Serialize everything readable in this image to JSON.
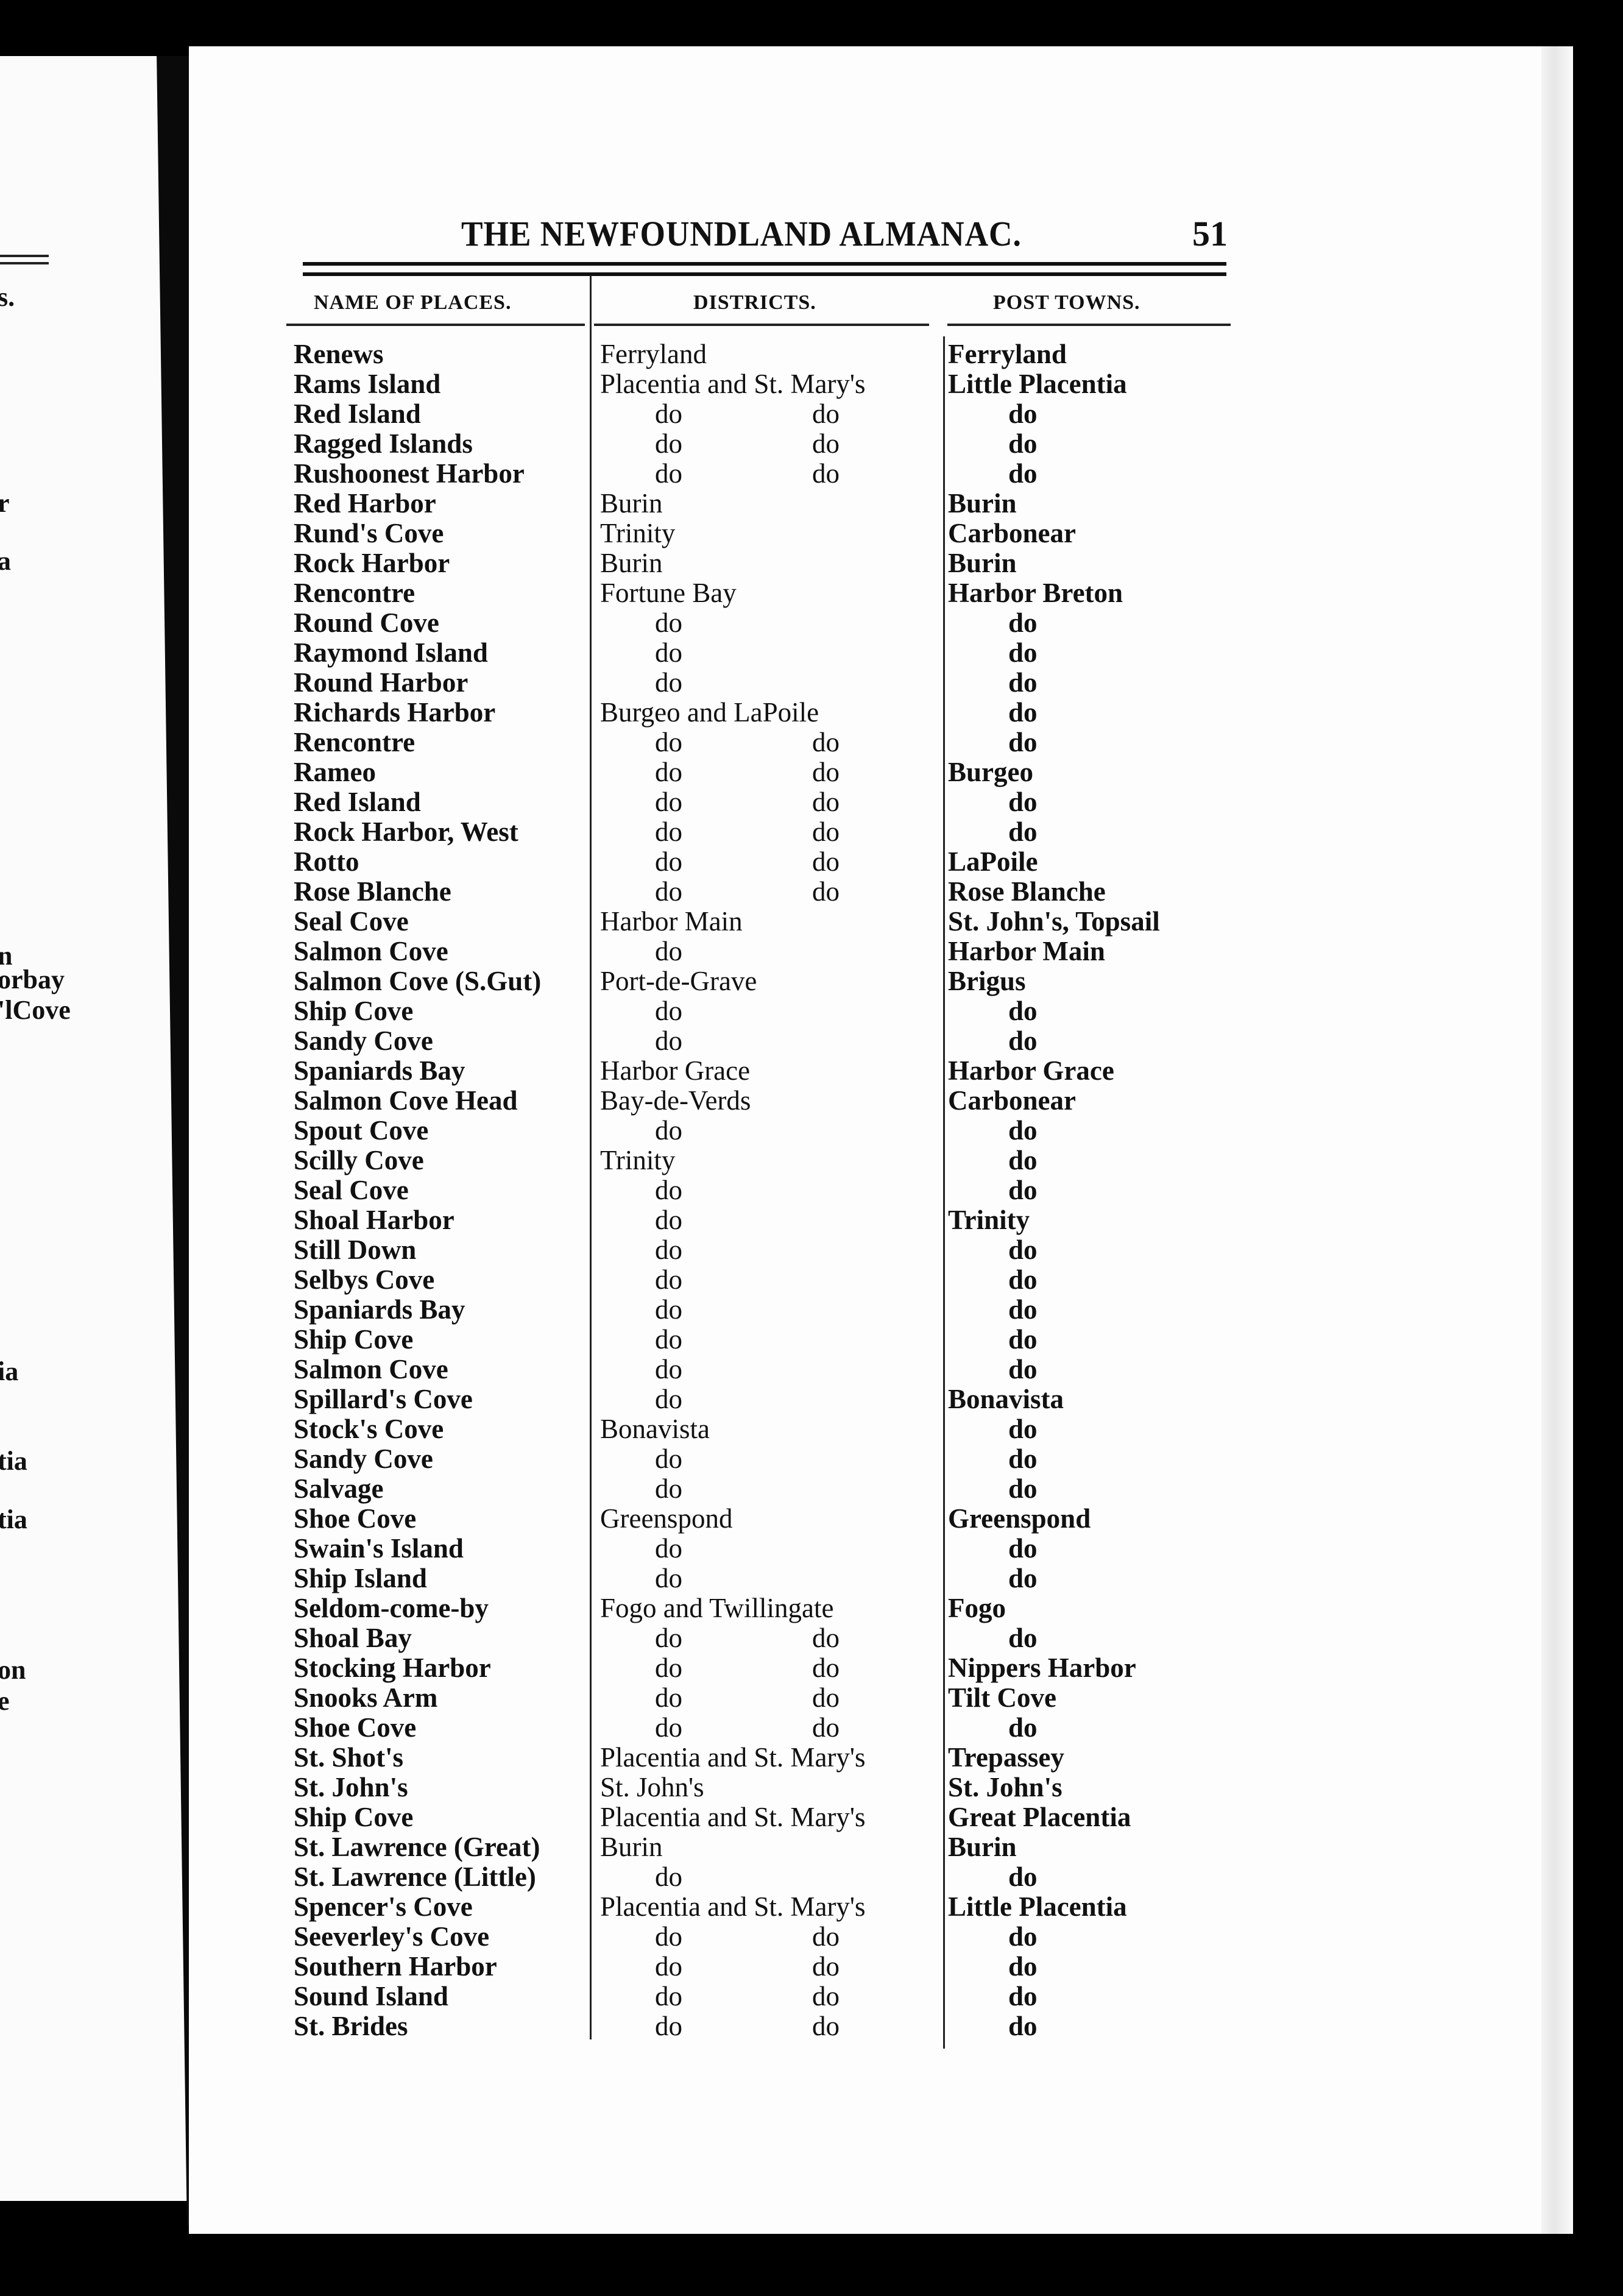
{
  "header": {
    "title": "THE NEWFOUNDLAND ALMANAC.",
    "page_number": "51"
  },
  "columns": {
    "name": "NAME OF PLACES.",
    "district": "DISTRICTS.",
    "post_town": "POST TOWNS."
  },
  "left_page_fragments": [
    "s.",
    "r",
    "a",
    "n",
    "orbay",
    "'lCove",
    "ia",
    "tia",
    "tia",
    "on",
    "e"
  ],
  "rows": [
    {
      "name": "Renews",
      "district": "Ferryland",
      "district2": "",
      "post_town": "Ferryland"
    },
    {
      "name": "Rams Island",
      "district": "Placentia and St. Mary's",
      "district2": "",
      "post_town": "Little Placentia"
    },
    {
      "name": "Red Island",
      "district": "do",
      "district2": "do",
      "post_town": "do"
    },
    {
      "name": "Ragged Islands",
      "district": "do",
      "district2": "do",
      "post_town": "do"
    },
    {
      "name": "Rushoonest Harbor",
      "district": "do",
      "district2": "do",
      "post_town": "do"
    },
    {
      "name": "Red Harbor",
      "district": "Burin",
      "district2": "",
      "post_town": "Burin"
    },
    {
      "name": "Rund's Cove",
      "district": "Trinity",
      "district2": "",
      "post_town": "Carbonear"
    },
    {
      "name": "Rock Harbor",
      "district": "Burin",
      "district2": "",
      "post_town": "Burin"
    },
    {
      "name": "Rencontre",
      "district": "Fortune Bay",
      "district2": "",
      "post_town": "Harbor Breton"
    },
    {
      "name": "Round Cove",
      "district": "do",
      "district2": "",
      "post_town": "do"
    },
    {
      "name": "Raymond Island",
      "district": "do",
      "district2": "",
      "post_town": "do"
    },
    {
      "name": "Round Harbor",
      "district": "do",
      "district2": "",
      "post_town": "do"
    },
    {
      "name": "Richards Harbor",
      "district": "Burgeo and LaPoile",
      "district2": "",
      "post_town": "do"
    },
    {
      "name": "Rencontre",
      "district": "do",
      "district2": "do",
      "post_town": "do"
    },
    {
      "name": "Rameo",
      "district": "do",
      "district2": "do",
      "post_town": "Burgeo"
    },
    {
      "name": "Red Island",
      "district": "do",
      "district2": "do",
      "post_town": "do"
    },
    {
      "name": "Rock Harbor, West",
      "district": "do",
      "district2": "do",
      "post_town": "do"
    },
    {
      "name": "Rotto",
      "district": "do",
      "district2": "do",
      "post_town": "LaPoile"
    },
    {
      "name": "Rose Blanche",
      "district": "do",
      "district2": "do",
      "post_town": "Rose Blanche"
    },
    {
      "name": "Seal Cove",
      "district": "Harbor Main",
      "district2": "",
      "post_town": "St. John's, Topsail"
    },
    {
      "name": "Salmon Cove",
      "district": "do",
      "district2": "",
      "post_town": "Harbor Main"
    },
    {
      "name": "Salmon Cove (S.Gut)",
      "district": "Port-de-Grave",
      "district2": "",
      "post_town": "Brigus"
    },
    {
      "name": "Ship Cove",
      "district": "do",
      "district2": "",
      "post_town": "do"
    },
    {
      "name": "Sandy Cove",
      "district": "do",
      "district2": "",
      "post_town": "do"
    },
    {
      "name": "Spaniards Bay",
      "district": "Harbor Grace",
      "district2": "",
      "post_town": "Harbor Grace"
    },
    {
      "name": "Salmon Cove Head",
      "district": "Bay-de-Verds",
      "district2": "",
      "post_town": "Carbonear"
    },
    {
      "name": "Spout Cove",
      "district": "do",
      "district2": "",
      "post_town": "do"
    },
    {
      "name": "Scilly Cove",
      "district": "Trinity",
      "district2": "",
      "post_town": "do"
    },
    {
      "name": "Seal Cove",
      "district": "do",
      "district2": "",
      "post_town": "do"
    },
    {
      "name": "Shoal Harbor",
      "district": "do",
      "district2": "",
      "post_town": "Trinity"
    },
    {
      "name": "Still Down",
      "district": "do",
      "district2": "",
      "post_town": "do"
    },
    {
      "name": "Selbys Cove",
      "district": "do",
      "district2": "",
      "post_town": "do"
    },
    {
      "name": "Spaniards Bay",
      "district": "do",
      "district2": "",
      "post_town": "do"
    },
    {
      "name": "Ship Cove",
      "district": "do",
      "district2": "",
      "post_town": "do"
    },
    {
      "name": "Salmon Cove",
      "district": "do",
      "district2": "",
      "post_town": "do"
    },
    {
      "name": "Spillard's Cove",
      "district": "do",
      "district2": "",
      "post_town": "Bonavista"
    },
    {
      "name": "Stock's Cove",
      "district": "Bonavista",
      "district2": "",
      "post_town": "do"
    },
    {
      "name": "Sandy Cove",
      "district": "do",
      "district2": "",
      "post_town": "do"
    },
    {
      "name": "Salvage",
      "district": "do",
      "district2": "",
      "post_town": "do"
    },
    {
      "name": "Shoe Cove",
      "district": "Greenspond",
      "district2": "",
      "post_town": "Greenspond"
    },
    {
      "name": "Swain's Island",
      "district": "do",
      "district2": "",
      "post_town": "do"
    },
    {
      "name": "Ship Island",
      "district": "do",
      "district2": "",
      "post_town": "do"
    },
    {
      "name": "Seldom-come-by",
      "district": "Fogo and Twillingate",
      "district2": "",
      "post_town": "Fogo"
    },
    {
      "name": "Shoal Bay",
      "district": "do",
      "district2": "do",
      "post_town": "do"
    },
    {
      "name": "Stocking Harbor",
      "district": "do",
      "district2": "do",
      "post_town": "Nippers Harbor"
    },
    {
      "name": "Snooks Arm",
      "district": "do",
      "district2": "do",
      "post_town": "Tilt Cove"
    },
    {
      "name": "Shoe Cove",
      "district": "do",
      "district2": "do",
      "post_town": "do"
    },
    {
      "name": "St. Shot's",
      "district": "Placentia and St. Mary's",
      "district2": "",
      "post_town": "Trepassey"
    },
    {
      "name": "St. John's",
      "district": "St. John's",
      "district2": "",
      "post_town": "St. John's"
    },
    {
      "name": "Ship Cove",
      "district": "Placentia and St. Mary's",
      "district2": "",
      "post_town": "Great Placentia"
    },
    {
      "name": "St. Lawrence (Great)",
      "district": "Burin",
      "district2": "",
      "post_town": "Burin"
    },
    {
      "name": "St. Lawrence (Little)",
      "district": "do",
      "district2": "",
      "post_town": "do"
    },
    {
      "name": "Spencer's Cove",
      "district": "Placentia and St. Mary's",
      "district2": "",
      "post_town": "Little Placentia"
    },
    {
      "name": "Seeverley's Cove",
      "district": "do",
      "district2": "do",
      "post_town": "do"
    },
    {
      "name": "Southern Harbor",
      "district": "do",
      "district2": "do",
      "post_town": "do"
    },
    {
      "name": "Sound Island",
      "district": "do",
      "district2": "do",
      "post_town": "do"
    },
    {
      "name": "St. Brides",
      "district": "do",
      "district2": "do",
      "post_town": "do"
    }
  ]
}
